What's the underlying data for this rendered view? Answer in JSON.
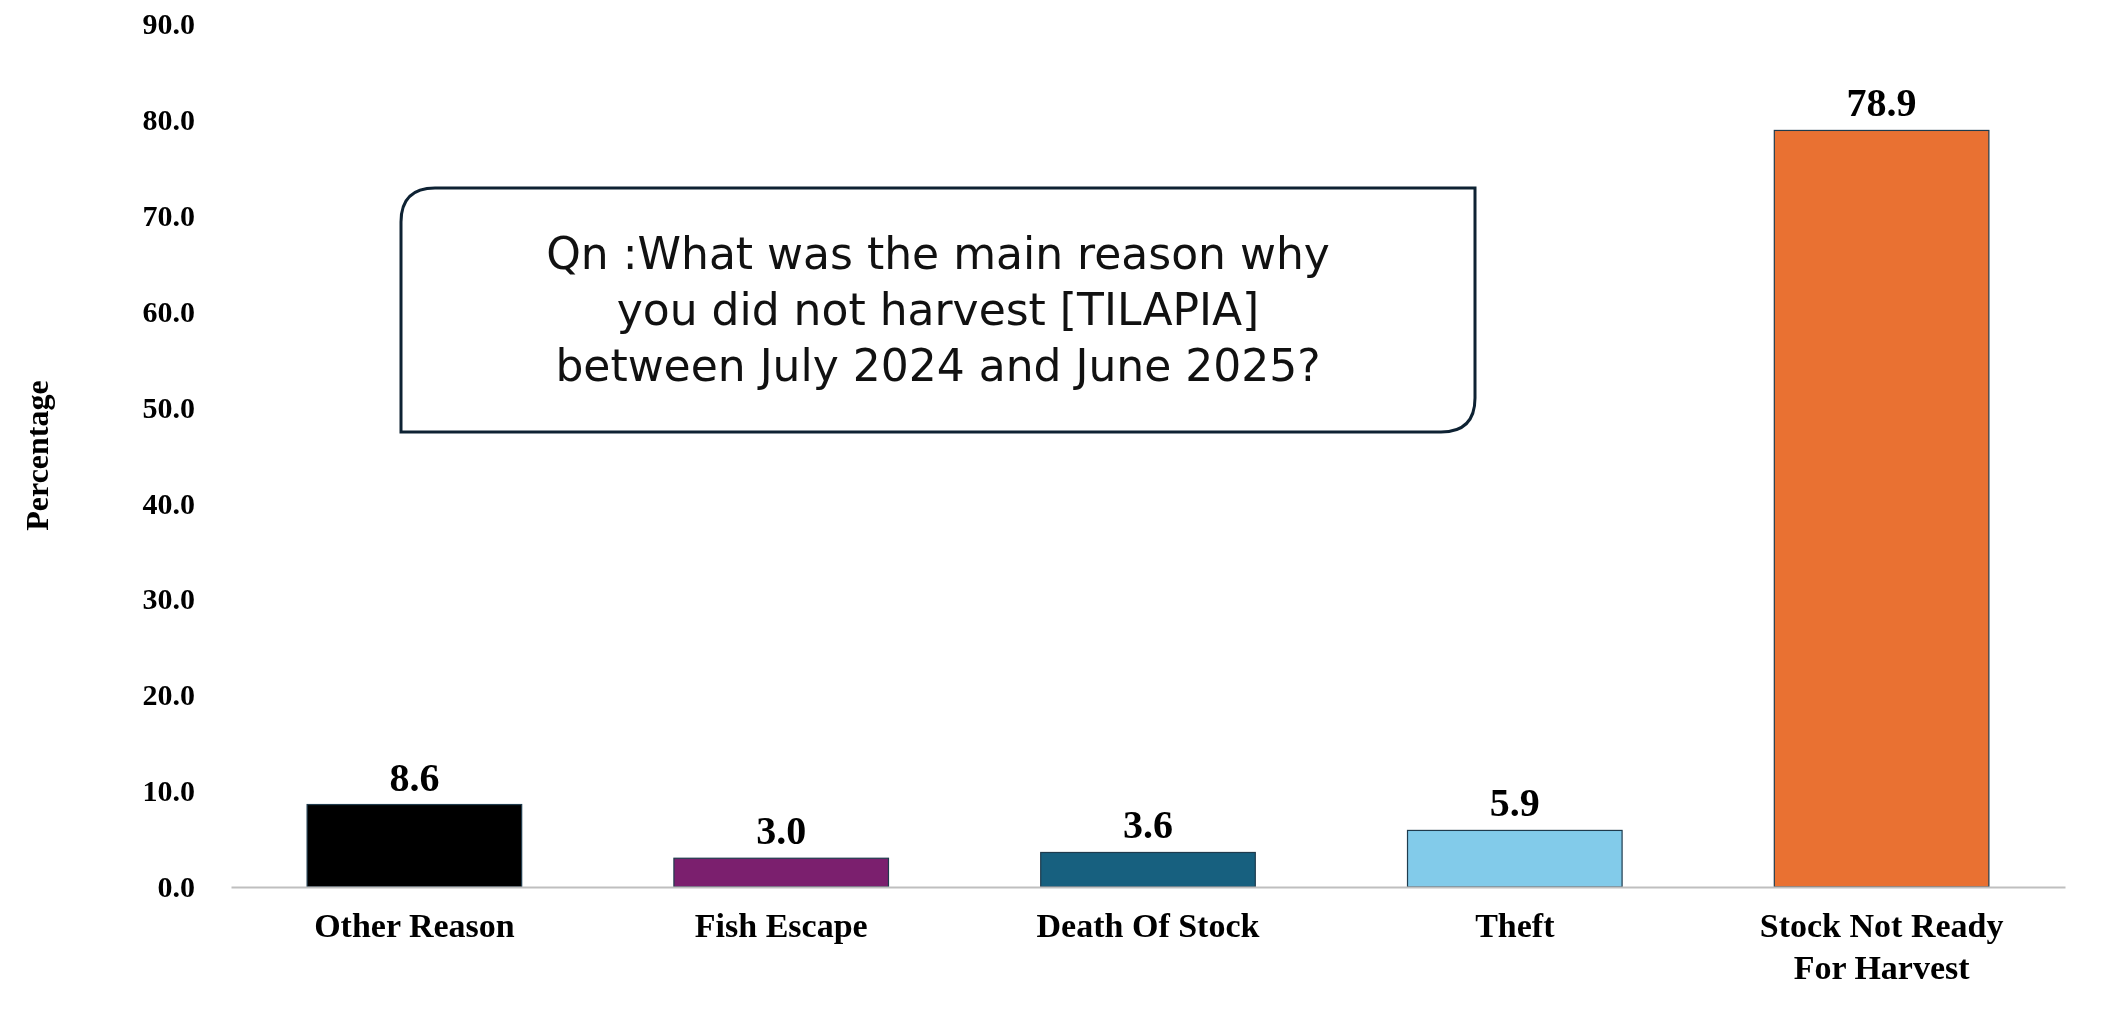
{
  "chart_data": {
    "type": "bar",
    "ylabel": "Percentage",
    "categories": [
      "Other Reason",
      "Fish Escape",
      "Death Of Stock",
      "Theft",
      "Stock Not Ready For Harvest"
    ],
    "values": [
      8.6,
      3.0,
      3.6,
      5.9,
      78.9
    ],
    "colors": [
      "#000000",
      "#7b1f6e",
      "#17607f",
      "#82cbea",
      "#e97132"
    ],
    "value_labels": [
      "8.6",
      "3.0",
      "3.6",
      "5.9",
      "78.9"
    ],
    "ylim": [
      0,
      90
    ],
    "yticks": [
      {
        "value": 0,
        "label": "0.0"
      },
      {
        "value": 10,
        "label": "10.0"
      },
      {
        "value": 20,
        "label": "20.0"
      },
      {
        "value": 30,
        "label": "30.0"
      },
      {
        "value": 40,
        "label": "40.0"
      },
      {
        "value": 50,
        "label": "50.0"
      },
      {
        "value": 60,
        "label": "60.0"
      },
      {
        "value": 70,
        "label": "70.0"
      },
      {
        "value": 80,
        "label": "80.0"
      },
      {
        "value": 90,
        "label": "90.0"
      }
    ],
    "grid": false,
    "annotations": [
      "Qn :What was the main reason why you did not harvest [TILAPIA] between July 2024 and June 2025?"
    ]
  }
}
